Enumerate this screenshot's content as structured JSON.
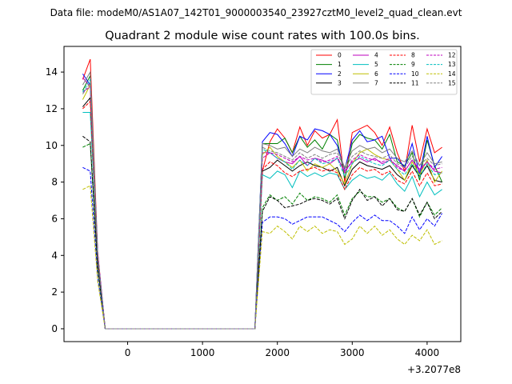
{
  "chart_data": {
    "type": "line",
    "suptitle": "Data file: modeM0/AS1A07_142T01_9000003540_23927cztM0_level2_quad_clean.evt",
    "title": "Quadrant 2 module wise count rates with 100.0s bins.",
    "xlabel": "",
    "ylabel": "",
    "x_offset_label": "+3.2077e8",
    "xlim": [
      -850,
      4450
    ],
    "ylim": [
      -0.7,
      15.4
    ],
    "xticks": [
      0,
      1000,
      2000,
      3000,
      4000
    ],
    "yticks": [
      0,
      2,
      4,
      6,
      8,
      10,
      12,
      14
    ],
    "grid": false,
    "legend_position": "top-right",
    "x": [
      -600,
      -500,
      -400,
      -300,
      -200,
      -100,
      0,
      100,
      200,
      300,
      400,
      500,
      600,
      700,
      800,
      900,
      1000,
      1100,
      1200,
      1300,
      1400,
      1500,
      1600,
      1700,
      1800,
      1900,
      2000,
      2100,
      2200,
      2300,
      2400,
      2500,
      2600,
      2700,
      2800,
      2900,
      3000,
      3100,
      3200,
      3300,
      3400,
      3500,
      3600,
      3700,
      3800,
      3900,
      4000,
      4100,
      4200
    ],
    "series": [
      {
        "name": "0",
        "color": "#ff0000",
        "dashed": false,
        "values": [
          13.6,
          14.7,
          4.2,
          0,
          0,
          0,
          0,
          0,
          0,
          0,
          0,
          0,
          0,
          0,
          0,
          0,
          0,
          0,
          0,
          0,
          0,
          0,
          0,
          0,
          8.6,
          10.2,
          10.9,
          10.4,
          9.6,
          11.0,
          10.0,
          10.8,
          10.4,
          10.6,
          11.4,
          8.0,
          10.7,
          10.9,
          11.1,
          10.7,
          10.0,
          11.0,
          9.6,
          8.6,
          11.1,
          9.1,
          10.9,
          9.6,
          9.9
        ]
      },
      {
        "name": "1",
        "color": "#008000",
        "dashed": false,
        "values": [
          13.0,
          13.8,
          4.0,
          0,
          0,
          0,
          0,
          0,
          0,
          0,
          0,
          0,
          0,
          0,
          0,
          0,
          0,
          0,
          0,
          0,
          0,
          0,
          0,
          0,
          10.1,
          10.1,
          10.1,
          10.4,
          9.6,
          10.5,
          9.9,
          10.3,
          9.8,
          10.6,
          10.3,
          8.2,
          10.1,
          10.6,
          10.4,
          10.3,
          9.8,
          10.6,
          9.1,
          8.9,
          9.6,
          8.1,
          10.3,
          8.9,
          8.0
        ]
      },
      {
        "name": "2",
        "color": "#0000ff",
        "dashed": false,
        "values": [
          13.9,
          13.3,
          4.1,
          0,
          0,
          0,
          0,
          0,
          0,
          0,
          0,
          0,
          0,
          0,
          0,
          0,
          0,
          0,
          0,
          0,
          0,
          0,
          0,
          0,
          10.2,
          10.7,
          10.6,
          10.1,
          9.4,
          10.5,
          10.3,
          10.9,
          10.8,
          10.6,
          10.0,
          8.7,
          10.3,
          10.8,
          10.2,
          10.3,
          10.5,
          9.3,
          9.3,
          8.8,
          10.1,
          8.4,
          10.5,
          8.8,
          9.4
        ]
      },
      {
        "name": "3",
        "color": "#000000",
        "dashed": false,
        "values": [
          12.1,
          12.6,
          3.9,
          0,
          0,
          0,
          0,
          0,
          0,
          0,
          0,
          0,
          0,
          0,
          0,
          0,
          0,
          0,
          0,
          0,
          0,
          0,
          0,
          0,
          8.6,
          8.8,
          9.2,
          8.9,
          8.6,
          8.9,
          9.1,
          8.9,
          8.8,
          8.6,
          8.8,
          7.8,
          8.7,
          9.1,
          8.9,
          8.8,
          8.7,
          8.9,
          8.4,
          8.1,
          8.9,
          8.3,
          8.9,
          8.1,
          8.0
        ]
      },
      {
        "name": "4",
        "color": "#bf00bf",
        "dashed": false,
        "values": [
          13.7,
          13.2,
          4.1,
          0,
          0,
          0,
          0,
          0,
          0,
          0,
          0,
          0,
          0,
          0,
          0,
          0,
          0,
          0,
          0,
          0,
          0,
          0,
          0,
          0,
          9.6,
          9.6,
          9.3,
          9.1,
          9.0,
          9.4,
          8.9,
          9.3,
          9.2,
          9.0,
          9.3,
          8.6,
          9.1,
          9.3,
          9.1,
          9.3,
          9.0,
          9.2,
          8.9,
          8.6,
          9.2,
          8.7,
          9.1,
          8.6,
          8.5
        ]
      },
      {
        "name": "5",
        "color": "#00bfbf",
        "dashed": false,
        "values": [
          11.8,
          11.8,
          3.6,
          0,
          0,
          0,
          0,
          0,
          0,
          0,
          0,
          0,
          0,
          0,
          0,
          0,
          0,
          0,
          0,
          0,
          0,
          0,
          0,
          0,
          8.4,
          8.2,
          8.6,
          8.4,
          7.7,
          8.6,
          8.3,
          8.5,
          8.3,
          8.5,
          8.4,
          7.6,
          8.1,
          8.4,
          8.2,
          8.3,
          8.1,
          8.5,
          7.9,
          7.5,
          8.3,
          7.2,
          8.0,
          7.3,
          7.6
        ]
      },
      {
        "name": "6",
        "color": "#bfbf00",
        "dashed": false,
        "values": [
          12.5,
          13.3,
          3.8,
          0,
          0,
          0,
          0,
          0,
          0,
          0,
          0,
          0,
          0,
          0,
          0,
          0,
          0,
          0,
          0,
          0,
          0,
          0,
          0,
          0,
          9.5,
          9.9,
          9.4,
          9.1,
          8.8,
          9.2,
          8.6,
          9.0,
          8.8,
          9.0,
          8.6,
          7.9,
          9.0,
          9.6,
          9.8,
          9.5,
          9.3,
          9.2,
          8.7,
          8.1,
          9.1,
          8.4,
          9.2,
          8.0,
          8.6
        ]
      },
      {
        "name": "7",
        "color": "#808080",
        "dashed": false,
        "values": [
          13.3,
          14.0,
          4.0,
          0,
          0,
          0,
          0,
          0,
          0,
          0,
          0,
          0,
          0,
          0,
          0,
          0,
          0,
          0,
          0,
          0,
          0,
          0,
          0,
          0,
          10.1,
          10.0,
          9.8,
          9.9,
          9.4,
          9.8,
          9.6,
          9.9,
          9.7,
          9.6,
          9.8,
          8.8,
          9.7,
          10.0,
          9.8,
          9.9,
          9.6,
          9.8,
          9.3,
          9.1,
          9.7,
          8.9,
          9.6,
          9.0,
          9.1
        ]
      },
      {
        "name": "8",
        "color": "#ff0000",
        "dashed": true,
        "values": [
          12.0,
          12.4,
          3.8,
          0,
          0,
          0,
          0,
          0,
          0,
          0,
          0,
          0,
          0,
          0,
          0,
          0,
          0,
          0,
          0,
          0,
          0,
          0,
          0,
          0,
          8.7,
          9.1,
          8.9,
          8.5,
          8.3,
          8.6,
          8.7,
          8.8,
          8.6,
          8.7,
          8.5,
          7.6,
          8.4,
          8.8,
          8.6,
          8.7,
          8.4,
          8.6,
          8.1,
          7.9,
          8.6,
          7.8,
          8.5,
          7.8,
          7.9
        ]
      },
      {
        "name": "9",
        "color": "#008000",
        "dashed": true,
        "values": [
          9.9,
          10.1,
          3.3,
          0,
          0,
          0,
          0,
          0,
          0,
          0,
          0,
          0,
          0,
          0,
          0,
          0,
          0,
          0,
          0,
          0,
          0,
          0,
          0,
          0,
          6.6,
          7.3,
          7.0,
          7.2,
          6.8,
          7.4,
          7.0,
          7.2,
          7.1,
          6.9,
          7.3,
          6.2,
          7.1,
          7.5,
          7.2,
          7.2,
          6.9,
          7.1,
          6.6,
          6.4,
          7.1,
          6.1,
          6.9,
          6.2,
          6.6
        ]
      },
      {
        "name": "10",
        "color": "#0000ff",
        "dashed": true,
        "values": [
          8.8,
          8.6,
          2.8,
          0,
          0,
          0,
          0,
          0,
          0,
          0,
          0,
          0,
          0,
          0,
          0,
          0,
          0,
          0,
          0,
          0,
          0,
          0,
          0,
          0,
          5.8,
          6.1,
          6.1,
          6.0,
          5.7,
          5.9,
          6.1,
          6.1,
          6.1,
          5.9,
          5.7,
          5.3,
          5.8,
          6.2,
          5.9,
          6.2,
          5.9,
          5.9,
          5.6,
          5.2,
          6.1,
          5.4,
          6.0,
          5.6,
          6.3
        ]
      },
      {
        "name": "11",
        "color": "#000000",
        "dashed": true,
        "values": [
          10.5,
          10.2,
          3.4,
          0,
          0,
          0,
          0,
          0,
          0,
          0,
          0,
          0,
          0,
          0,
          0,
          0,
          0,
          0,
          0,
          0,
          0,
          0,
          0,
          0,
          6.4,
          7.2,
          7.0,
          6.6,
          6.7,
          6.8,
          7.0,
          7.1,
          7.0,
          6.8,
          7.1,
          6.0,
          7.0,
          7.6,
          7.0,
          7.2,
          6.7,
          7.1,
          6.5,
          6.4,
          7.1,
          6.2,
          6.9,
          6.0,
          6.4
        ]
      },
      {
        "name": "12",
        "color": "#bf00bf",
        "dashed": true,
        "values": [
          12.9,
          13.2,
          4.0,
          0,
          0,
          0,
          0,
          0,
          0,
          0,
          0,
          0,
          0,
          0,
          0,
          0,
          0,
          0,
          0,
          0,
          0,
          0,
          0,
          0,
          9.3,
          9.6,
          9.5,
          9.3,
          9.1,
          9.4,
          9.2,
          9.3,
          9.1,
          9.2,
          9.4,
          8.5,
          9.2,
          9.5,
          9.3,
          9.2,
          9.1,
          9.3,
          8.8,
          8.6,
          9.2,
          8.6,
          9.1,
          8.7,
          8.8
        ]
      },
      {
        "name": "13",
        "color": "#00bfbf",
        "dashed": true,
        "values": [
          12.9,
          13.6,
          4.0,
          0,
          0,
          0,
          0,
          0,
          0,
          0,
          0,
          0,
          0,
          0,
          0,
          0,
          0,
          0,
          0,
          0,
          0,
          0,
          0,
          0,
          9.8,
          9.6,
          9.3,
          9.1,
          8.7,
          9.2,
          8.9,
          9.3,
          9.0,
          9.1,
          9.3,
          8.3,
          9.0,
          9.4,
          9.2,
          9.0,
          8.9,
          9.2,
          8.7,
          8.4,
          9.0,
          8.3,
          9.0,
          8.4,
          8.5
        ]
      },
      {
        "name": "14",
        "color": "#bfbf00",
        "dashed": true,
        "values": [
          7.6,
          7.8,
          2.6,
          0,
          0,
          0,
          0,
          0,
          0,
          0,
          0,
          0,
          0,
          0,
          0,
          0,
          0,
          0,
          0,
          0,
          0,
          0,
          0,
          0,
          5.3,
          5.2,
          5.6,
          5.3,
          4.9,
          5.6,
          5.3,
          5.6,
          5.2,
          5.4,
          5.3,
          4.6,
          4.9,
          5.6,
          5.2,
          5.6,
          5.1,
          5.4,
          4.9,
          4.6,
          5.1,
          4.8,
          5.4,
          4.6,
          4.8
        ]
      },
      {
        "name": "15",
        "color": "#808080",
        "dashed": true,
        "values": [
          12.8,
          13.4,
          4.0,
          0,
          0,
          0,
          0,
          0,
          0,
          0,
          0,
          0,
          0,
          0,
          0,
          0,
          0,
          0,
          0,
          0,
          0,
          0,
          0,
          0,
          9.9,
          9.7,
          9.6,
          9.4,
          9.2,
          9.6,
          9.3,
          9.5,
          9.3,
          9.5,
          9.6,
          8.7,
          9.4,
          9.7,
          9.5,
          9.4,
          9.3,
          9.5,
          9.0,
          8.8,
          9.4,
          8.9,
          9.3,
          8.9,
          9.0
        ]
      }
    ]
  }
}
